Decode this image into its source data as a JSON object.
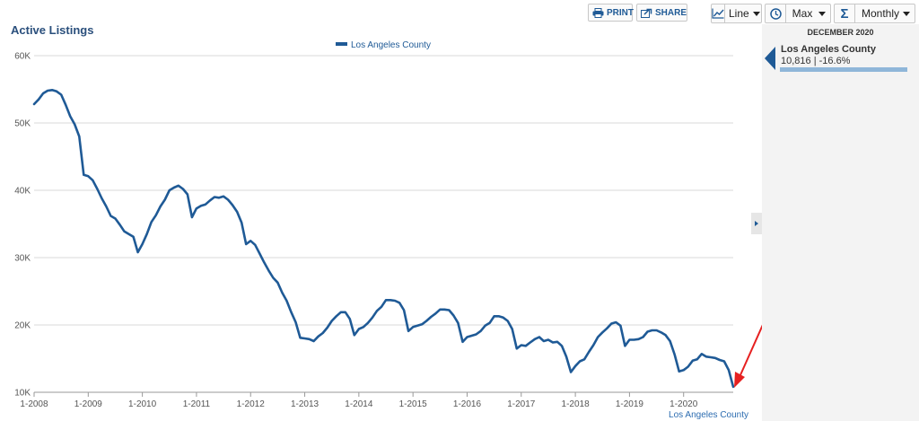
{
  "toolbar": {
    "print_label": "PRINT",
    "share_label": "SHARE",
    "chart_type_value": "Line",
    "range_value": "Max",
    "frequency_value": "Monthly"
  },
  "sidebar": {
    "date_heading": "DECEMBER 2020",
    "series_name": "Los Angeles County",
    "value_text": "10,816 | -16.6%"
  },
  "colors": {
    "line": "#1f5a96",
    "grid": "#d8d8d8",
    "annotation_arrow": "#e62020"
  },
  "chart_data": {
    "type": "line",
    "title": "Active Listings",
    "legend": "top-center",
    "credit": "Los Angeles County",
    "ylim": [
      10000,
      60000
    ],
    "y_ticks": [
      {
        "value": 10000,
        "label": "10K"
      },
      {
        "value": 20000,
        "label": "20K"
      },
      {
        "value": 30000,
        "label": "30K"
      },
      {
        "value": 40000,
        "label": "40K"
      },
      {
        "value": 50000,
        "label": "50K"
      },
      {
        "value": 60000,
        "label": "60K"
      }
    ],
    "x_ticks": [
      "1-2008",
      "1-2009",
      "1-2010",
      "1-2011",
      "1-2012",
      "1-2013",
      "1-2014",
      "1-2015",
      "1-2016",
      "1-2017",
      "1-2018",
      "1-2019",
      "1-2020"
    ],
    "x_start": "2008-01",
    "x_end": "2020-12",
    "series": [
      {
        "name": "Los Angeles County",
        "values": [
          52800,
          53500,
          54400,
          54800,
          54900,
          54700,
          54200,
          52700,
          51000,
          49800,
          48000,
          42300,
          42100,
          41500,
          40200,
          38800,
          37600,
          36200,
          35800,
          34900,
          33900,
          33500,
          33100,
          30800,
          32000,
          33500,
          35300,
          36300,
          37600,
          38600,
          40000,
          40400,
          40700,
          40200,
          39400,
          36000,
          37300,
          37700,
          37900,
          38500,
          39000,
          38900,
          39100,
          38600,
          37800,
          36800,
          35200,
          32000,
          32500,
          31900,
          30600,
          29300,
          28100,
          27000,
          26300,
          24800,
          23600,
          21900,
          20400,
          18100,
          18000,
          17900,
          17600,
          18300,
          18800,
          19600,
          20600,
          21300,
          21900,
          21900,
          20900,
          18500,
          19400,
          19700,
          20300,
          21100,
          22100,
          22700,
          23700,
          23700,
          23600,
          23300,
          22200,
          19100,
          19700,
          19900,
          20100,
          20600,
          21200,
          21700,
          22300,
          22300,
          22200,
          21400,
          20300,
          17500,
          18200,
          18400,
          18600,
          19100,
          19900,
          20300,
          21300,
          21300,
          21100,
          20600,
          19400,
          16500,
          17000,
          16900,
          17400,
          17900,
          18200,
          17600,
          17800,
          17400,
          17500,
          16900,
          15300,
          13000,
          13900,
          14600,
          14900,
          16000,
          17000,
          18200,
          18900,
          19500,
          20200,
          20400,
          19900,
          16900,
          17800,
          17800,
          17900,
          18200,
          19000,
          19200,
          19200,
          18900,
          18500,
          17600,
          15600,
          13100,
          13300,
          13800,
          14700,
          14900,
          15700,
          15300,
          15200,
          15100,
          14800,
          14600,
          13300,
          10816
        ]
      }
    ]
  }
}
